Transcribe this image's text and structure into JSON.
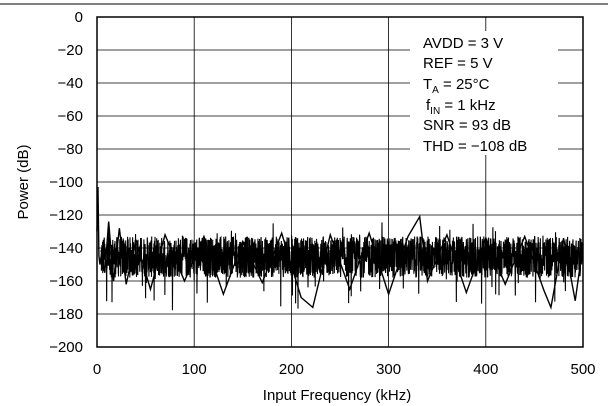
{
  "chart_data": {
    "type": "line",
    "xlabel": "Input Frequency (kHz)",
    "ylabel": "Power (dB)",
    "xlim": [
      0,
      500
    ],
    "ylim": [
      -200,
      0
    ],
    "xticks": [
      0,
      100,
      200,
      300,
      400,
      500
    ],
    "yticks": [
      0,
      -20,
      -40,
      -60,
      -80,
      -100,
      -120,
      -140,
      -160,
      -180,
      -200
    ],
    "xtick_labels": [
      "0",
      "100",
      "200",
      "300",
      "400",
      "500"
    ],
    "ytick_labels": [
      "0",
      "−20",
      "−40",
      "−60",
      "−80",
      "−100",
      "−120",
      "−140",
      "−160",
      "−180",
      "−200"
    ],
    "grid": true,
    "line_color": "#000000",
    "noise_floor": {
      "upper": -133,
      "lower": -158,
      "peak_min": -178,
      "peak_max": -122
    },
    "series": [
      {
        "x": [
          0,
          0.5,
          1,
          1.5,
          2,
          3,
          5,
          8,
          12,
          17,
          23,
          30,
          40,
          55,
          70,
          90,
          110,
          130,
          150,
          170,
          190,
          210,
          222,
          240,
          260,
          280,
          300,
          320,
          332,
          340,
          360,
          380,
          400,
          420,
          440,
          460,
          467,
          480,
          492,
          500
        ],
        "y": [
          -130,
          -118,
          -103,
          -125,
          -145,
          -150,
          -142,
          -155,
          -124,
          -160,
          -128,
          -162,
          -135,
          -165,
          -132,
          -160,
          -133,
          -168,
          -136,
          -161,
          -131,
          -170,
          -176,
          -132,
          -165,
          -131,
          -168,
          -133,
          -121,
          -160,
          -132,
          -167,
          -134,
          -162,
          -133,
          -166,
          -176,
          -134,
          -172,
          -138
        ]
      }
    ],
    "annotations": [
      {
        "main": "AVDD = 3 V"
      },
      {
        "main": "REF = 5 V"
      },
      {
        "main": "T",
        "sub": "A",
        "rest": " = 25°C"
      },
      {
        "main": "f",
        "sub": "IN",
        "rest": " = 1 kHz"
      },
      {
        "main": "SNR = 93 dB"
      },
      {
        "main": "THD = −108 dB"
      }
    ]
  }
}
